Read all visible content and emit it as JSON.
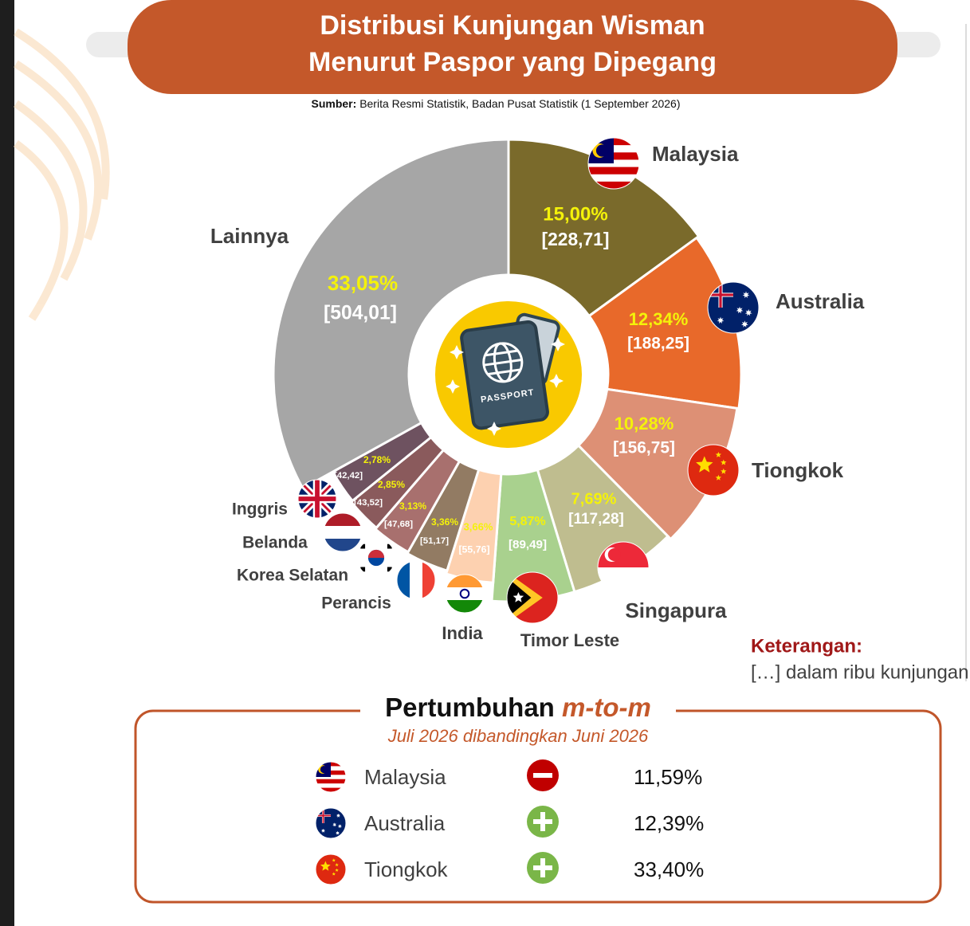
{
  "header": {
    "title_line1": "Distribusi Kunjungan Wisman",
    "title_line2": "Menurut Paspor yang Dipegang",
    "source_label": "Sumber:",
    "source_text": "Berita Resmi Statistik, Badan Pusat Statistik (1 September 2026)"
  },
  "chart_data": {
    "type": "donut",
    "categories": [
      "Malaysia",
      "Australia",
      "Tiongkok",
      "Singapura",
      "Timor Leste",
      "India",
      "Perancis",
      "Korea Selatan",
      "Belanda",
      "Inggris",
      "Lainnya"
    ],
    "values": [
      15.0,
      12.34,
      10.28,
      7.69,
      5.87,
      3.66,
      3.36,
      3.13,
      2.85,
      2.78,
      33.05
    ],
    "value_labels": [
      "15,00%",
      "12,34%",
      "10,28%",
      "7,69%",
      "5,87%",
      "3,66%",
      "3,36%",
      "3,13%",
      "2,85%",
      "2,78%",
      "33,05%"
    ],
    "visit_labels": [
      "[228,71]",
      "[188,25]",
      "[156,75]",
      "[117,28]",
      "[89,49]",
      "[55,76]",
      "[51,17]",
      "[47,68]",
      "[43,52]",
      "[42,42]",
      "[504,01]"
    ],
    "colors": [
      "#7a6a2b",
      "#e8692a",
      "#dd9075",
      "#bfbd8f",
      "#a9d18e",
      "#fdd1b0",
      "#927b63",
      "#a8706e",
      "#8a5a5c",
      "#6e5260",
      "#a6a6a6"
    ],
    "center_icon_text": "PASSPORT"
  },
  "note": {
    "title": "Keterangan:",
    "text": "[…] dalam ribu kunjungan"
  },
  "growth": {
    "title": "Pertumbuhan",
    "title_em": "m-to-m",
    "subtitle": "Juli 2026 dibandingkan Juni 2026",
    "rows": [
      {
        "country": "Malaysia",
        "sign": "minus",
        "value": "11,59%"
      },
      {
        "country": "Australia",
        "sign": "plus",
        "value": "12,39%"
      },
      {
        "country": "Tiongkok",
        "sign": "plus",
        "value": "33,40%"
      }
    ]
  }
}
